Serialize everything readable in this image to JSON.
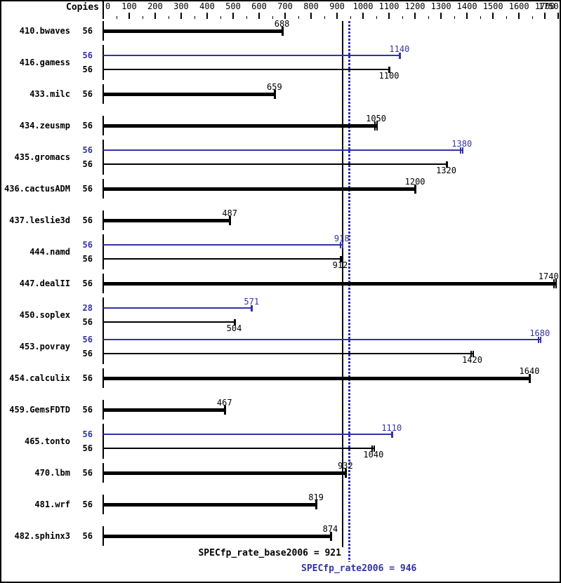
{
  "header": {
    "copies_label": "Copies"
  },
  "chart_data": {
    "type": "bar",
    "orientation": "horizontal",
    "title": "",
    "axis": {
      "min": 0,
      "max": 1780,
      "major_tick_step": 100,
      "minor_tick_step": 50,
      "major_tick_labels": [
        "0",
        "100",
        "200",
        "300",
        "400",
        "500",
        "600",
        "700",
        "800",
        "900",
        "1000",
        "1100",
        "1200",
        "1300",
        "1400",
        "1500",
        "1600",
        "1700",
        "1750"
      ],
      "major_tick_values": [
        0,
        100,
        200,
        300,
        400,
        500,
        600,
        700,
        800,
        900,
        1000,
        1100,
        1200,
        1300,
        1400,
        1500,
        1600,
        1700,
        1750
      ]
    },
    "copies_column_header": "Copies",
    "benchmarks": [
      {
        "name": "410.bwaves",
        "bars": [
          {
            "copies": "56",
            "value": 688,
            "role": "base",
            "cap": "single"
          }
        ]
      },
      {
        "name": "416.gamess",
        "bars": [
          {
            "copies": "56",
            "value": 1140,
            "role": "peak",
            "cap": "single"
          },
          {
            "copies": "56",
            "value": 1100,
            "role": "base",
            "cap": "single"
          }
        ]
      },
      {
        "name": "433.milc",
        "bars": [
          {
            "copies": "56",
            "value": 659,
            "role": "base",
            "cap": "single"
          }
        ]
      },
      {
        "name": "434.zeusmp",
        "bars": [
          {
            "copies": "56",
            "value": 1050,
            "role": "base",
            "cap": "double"
          }
        ]
      },
      {
        "name": "435.gromacs",
        "bars": [
          {
            "copies": "56",
            "value": 1380,
            "role": "peak",
            "cap": "double"
          },
          {
            "copies": "56",
            "value": 1320,
            "role": "base",
            "cap": "single"
          }
        ]
      },
      {
        "name": "436.cactusADM",
        "bars": [
          {
            "copies": "56",
            "value": 1200,
            "role": "base",
            "cap": "single"
          }
        ]
      },
      {
        "name": "437.leslie3d",
        "bars": [
          {
            "copies": "56",
            "value": 487,
            "role": "base",
            "cap": "single"
          }
        ]
      },
      {
        "name": "444.namd",
        "bars": [
          {
            "copies": "56",
            "value": 918,
            "role": "peak",
            "cap": "double"
          },
          {
            "copies": "56",
            "value": 912,
            "role": "base",
            "cap": "single"
          }
        ]
      },
      {
        "name": "447.dealII",
        "bars": [
          {
            "copies": "56",
            "value": 1740,
            "role": "base",
            "cap": "double"
          }
        ]
      },
      {
        "name": "450.soplex",
        "bars": [
          {
            "copies": "28",
            "value": 571,
            "role": "peak",
            "cap": "single"
          },
          {
            "copies": "56",
            "value": 504,
            "role": "base",
            "cap": "single"
          }
        ]
      },
      {
        "name": "453.povray",
        "bars": [
          {
            "copies": "56",
            "value": 1680,
            "role": "peak",
            "cap": "double"
          },
          {
            "copies": "56",
            "value": 1420,
            "role": "base",
            "cap": "double"
          }
        ]
      },
      {
        "name": "454.calculix",
        "bars": [
          {
            "copies": "56",
            "value": 1640,
            "role": "base",
            "cap": "single"
          }
        ]
      },
      {
        "name": "459.GemsFDTD",
        "bars": [
          {
            "copies": "56",
            "value": 467,
            "role": "base",
            "cap": "single"
          }
        ]
      },
      {
        "name": "465.tonto",
        "bars": [
          {
            "copies": "56",
            "value": 1110,
            "role": "peak",
            "cap": "single"
          },
          {
            "copies": "56",
            "value": 1040,
            "role": "base",
            "cap": "double"
          }
        ]
      },
      {
        "name": "470.lbm",
        "bars": [
          {
            "copies": "56",
            "value": 932,
            "role": "base",
            "cap": "single"
          }
        ]
      },
      {
        "name": "481.wrf",
        "bars": [
          {
            "copies": "56",
            "value": 819,
            "role": "base",
            "cap": "single"
          }
        ]
      },
      {
        "name": "482.sphinx3",
        "bars": [
          {
            "copies": "56",
            "value": 874,
            "role": "base",
            "cap": "single"
          }
        ]
      }
    ],
    "reference_lines": [
      {
        "id": "base",
        "label": "SPECfp_rate_base2006 = 921",
        "value": 921,
        "style": "solid",
        "color": "#000000"
      },
      {
        "id": "peak",
        "label": "SPECfp_rate2006 = 946",
        "value": 946,
        "style": "dotted",
        "color": "#3232A8"
      }
    ],
    "colors": {
      "base_bar": "#000000",
      "peak_bar": "#3232A8",
      "background": "#FFFFFF",
      "border": "#000000"
    }
  }
}
